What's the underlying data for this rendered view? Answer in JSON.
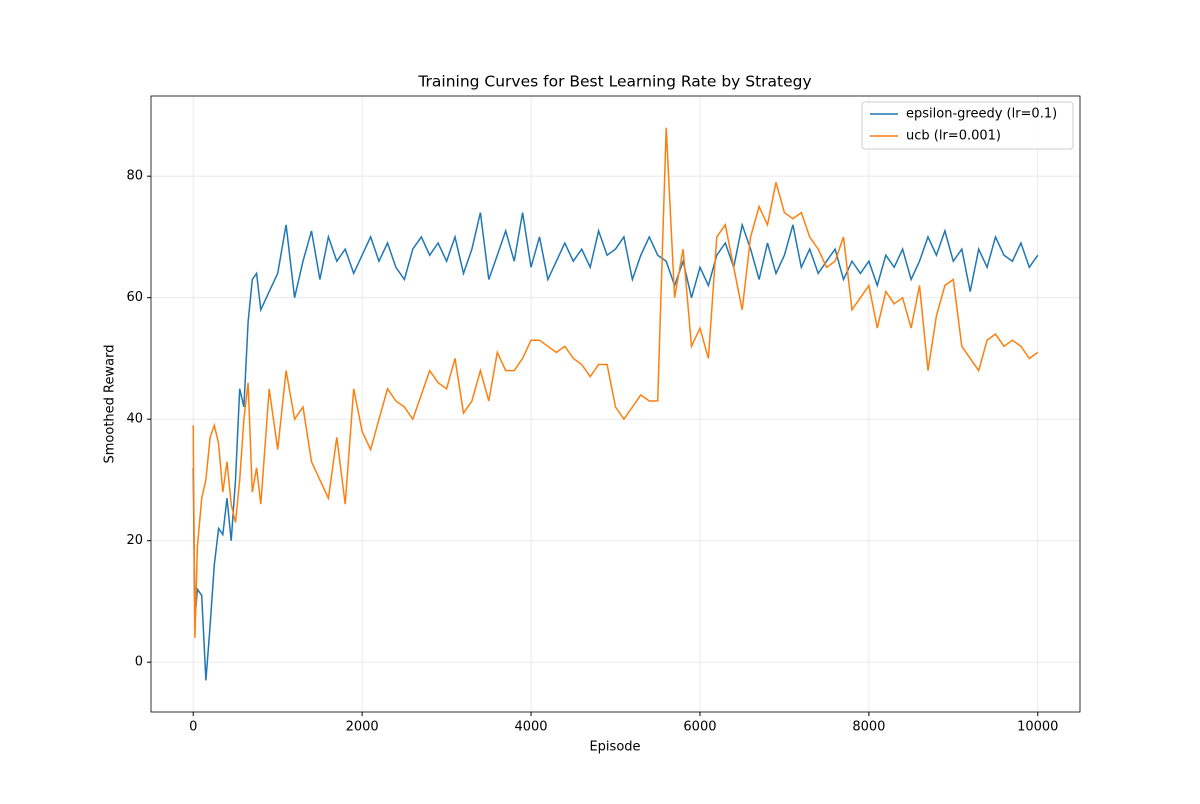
{
  "chart_data": {
    "type": "line",
    "title": "Training Curves for Best Learning Rate by Strategy",
    "xlabel": "Episode",
    "ylabel": "Smoothed Reward",
    "x": [
      0,
      20,
      50,
      100,
      150,
      200,
      250,
      300,
      350,
      400,
      450,
      500,
      550,
      600,
      650,
      700,
      750,
      800,
      900,
      1000,
      1100,
      1200,
      1300,
      1400,
      1500,
      1600,
      1700,
      1800,
      1900,
      2000,
      2100,
      2200,
      2300,
      2400,
      2500,
      2600,
      2700,
      2800,
      2900,
      3000,
      3100,
      3200,
      3300,
      3400,
      3500,
      3600,
      3700,
      3800,
      3900,
      4000,
      4100,
      4200,
      4300,
      4400,
      4500,
      4600,
      4700,
      4800,
      4900,
      5000,
      5100,
      5200,
      5300,
      5400,
      5500,
      5600,
      5700,
      5800,
      5900,
      6000,
      6100,
      6200,
      6300,
      6400,
      6500,
      6600,
      6700,
      6800,
      6900,
      7000,
      7100,
      7200,
      7300,
      7400,
      7500,
      7600,
      7700,
      7800,
      7900,
      8000,
      8100,
      8200,
      8300,
      8400,
      8500,
      8600,
      8700,
      8800,
      8900,
      9000,
      9100,
      9200,
      9300,
      9400,
      9500,
      9600,
      9700,
      9800,
      9900,
      10000
    ],
    "series": [
      {
        "name": "epsilon-greedy (lr=0.1)",
        "color": "#1f77b4",
        "values": [
          32,
          7,
          12,
          11,
          -3,
          6,
          16,
          22,
          21,
          27,
          20,
          30,
          45,
          42,
          56,
          63,
          64,
          58,
          61,
          64,
          72,
          60,
          66,
          71,
          63,
          70,
          66,
          68,
          64,
          67,
          70,
          66,
          69,
          65,
          63,
          68,
          70,
          67,
          69,
          66,
          70,
          64,
          68,
          74,
          63,
          67,
          71,
          66,
          74,
          65,
          70,
          63,
          66,
          69,
          66,
          68,
          65,
          71,
          67,
          68,
          70,
          63,
          67,
          70,
          67,
          66,
          62,
          66,
          60,
          65,
          62,
          67,
          69,
          65,
          72,
          68,
          63,
          69,
          64,
          67,
          72,
          65,
          68,
          64,
          66,
          68,
          63,
          66,
          64,
          66,
          62,
          67,
          65,
          68,
          63,
          66,
          70,
          67,
          71,
          66,
          68,
          61,
          68,
          65,
          70,
          67,
          66,
          69,
          65,
          67
        ]
      },
      {
        "name": "ucb (lr=0.001)",
        "color": "#ff7f0e",
        "values": [
          39,
          4,
          19,
          27,
          30,
          37,
          39,
          36,
          28,
          33,
          26,
          23,
          30,
          40,
          46,
          28,
          32,
          26,
          45,
          35,
          48,
          40,
          42,
          33,
          30,
          27,
          37,
          26,
          45,
          38,
          35,
          40,
          45,
          43,
          42,
          40,
          44,
          48,
          46,
          45,
          50,
          41,
          43,
          48,
          43,
          51,
          48,
          48,
          50,
          53,
          53,
          52,
          51,
          52,
          50,
          49,
          47,
          49,
          49,
          42,
          40,
          42,
          44,
          43,
          43,
          88,
          60,
          68,
          52,
          55,
          50,
          70,
          72,
          65,
          58,
          70,
          75,
          72,
          79,
          74,
          73,
          74,
          70,
          68,
          65,
          66,
          70,
          58,
          60,
          62,
          55,
          61,
          59,
          60,
          55,
          62,
          48,
          57,
          62,
          63,
          52,
          50,
          48,
          53,
          54,
          52,
          53,
          52,
          50,
          51
        ]
      }
    ],
    "xlim": [
      -500,
      10500
    ],
    "ylim": [
      -8.2,
      93.2
    ],
    "xticks": [
      0,
      2000,
      4000,
      6000,
      8000,
      10000
    ],
    "yticks": [
      0,
      20,
      40,
      60,
      80
    ],
    "grid": true,
    "legend": "upper right"
  }
}
